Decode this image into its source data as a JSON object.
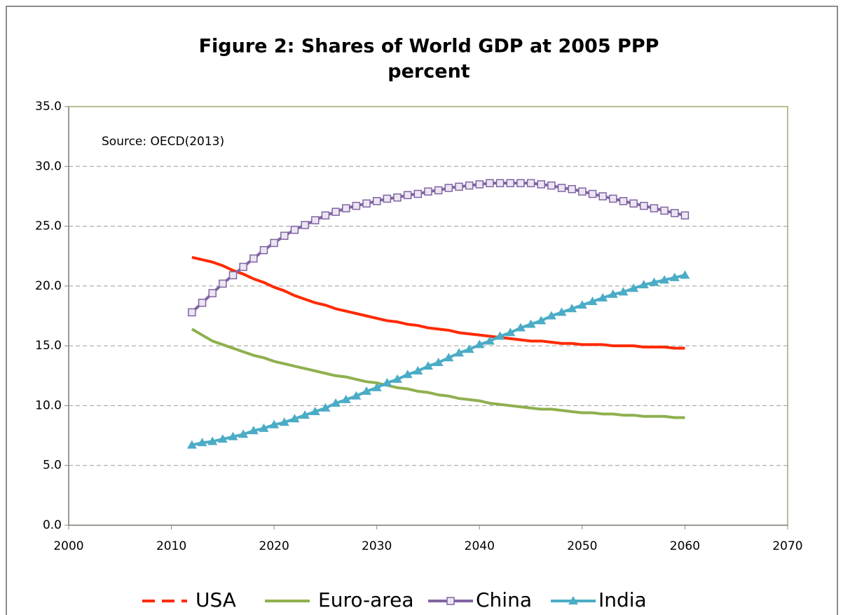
{
  "chart_data": {
    "type": "line",
    "title": "Figure 2: Shares of World GDP at 2005 PPP",
    "subtitle": "percent",
    "annotation": "Source: OECD(2013)",
    "x": [
      2012,
      2013,
      2014,
      2015,
      2016,
      2017,
      2018,
      2019,
      2020,
      2021,
      2022,
      2023,
      2024,
      2025,
      2026,
      2027,
      2028,
      2029,
      2030,
      2031,
      2032,
      2033,
      2034,
      2035,
      2036,
      2037,
      2038,
      2039,
      2040,
      2041,
      2042,
      2043,
      2044,
      2045,
      2046,
      2047,
      2048,
      2049,
      2050,
      2051,
      2052,
      2053,
      2054,
      2055,
      2056,
      2057,
      2058,
      2059,
      2060
    ],
    "series": [
      {
        "name": "USA",
        "color": "#ff2a00",
        "marker": "none",
        "legend_dash": true,
        "values": [
          22.4,
          22.2,
          22.0,
          21.7,
          21.3,
          21.0,
          20.6,
          20.3,
          19.9,
          19.6,
          19.2,
          18.9,
          18.6,
          18.4,
          18.1,
          17.9,
          17.7,
          17.5,
          17.3,
          17.1,
          17.0,
          16.8,
          16.7,
          16.5,
          16.4,
          16.3,
          16.1,
          16.0,
          15.9,
          15.8,
          15.7,
          15.6,
          15.5,
          15.4,
          15.4,
          15.3,
          15.2,
          15.2,
          15.1,
          15.1,
          15.1,
          15.0,
          15.0,
          15.0,
          14.9,
          14.9,
          14.9,
          14.8,
          14.8
        ]
      },
      {
        "name": "Euro-area",
        "color": "#8fb04f",
        "marker": "none",
        "values": [
          16.4,
          15.9,
          15.4,
          15.1,
          14.8,
          14.5,
          14.2,
          14.0,
          13.7,
          13.5,
          13.3,
          13.1,
          12.9,
          12.7,
          12.5,
          12.4,
          12.2,
          12.0,
          11.9,
          11.7,
          11.5,
          11.4,
          11.2,
          11.1,
          10.9,
          10.8,
          10.6,
          10.5,
          10.4,
          10.2,
          10.1,
          10.0,
          9.9,
          9.8,
          9.7,
          9.7,
          9.6,
          9.5,
          9.4,
          9.4,
          9.3,
          9.3,
          9.2,
          9.2,
          9.1,
          9.1,
          9.1,
          9.0,
          9.0
        ]
      },
      {
        "name": "China",
        "color": "#8064a2",
        "marker": "square",
        "values": [
          17.8,
          18.6,
          19.4,
          20.2,
          20.9,
          21.6,
          22.3,
          23.0,
          23.6,
          24.2,
          24.7,
          25.1,
          25.5,
          25.9,
          26.2,
          26.5,
          26.7,
          26.9,
          27.1,
          27.3,
          27.4,
          27.6,
          27.7,
          27.9,
          28.0,
          28.2,
          28.3,
          28.4,
          28.5,
          28.6,
          28.6,
          28.6,
          28.6,
          28.6,
          28.5,
          28.4,
          28.2,
          28.1,
          27.9,
          27.7,
          27.5,
          27.3,
          27.1,
          26.9,
          26.7,
          26.5,
          26.3,
          26.1,
          25.9
        ]
      },
      {
        "name": "India",
        "color": "#4bacc6",
        "marker": "triangle",
        "values": [
          6.7,
          6.9,
          7.0,
          7.2,
          7.4,
          7.6,
          7.9,
          8.1,
          8.4,
          8.6,
          8.9,
          9.2,
          9.5,
          9.8,
          10.2,
          10.5,
          10.8,
          11.2,
          11.5,
          11.9,
          12.2,
          12.6,
          12.9,
          13.3,
          13.6,
          14.0,
          14.4,
          14.7,
          15.1,
          15.4,
          15.8,
          16.1,
          16.5,
          16.8,
          17.1,
          17.5,
          17.8,
          18.1,
          18.4,
          18.7,
          19.0,
          19.3,
          19.5,
          19.8,
          20.1,
          20.3,
          20.5,
          20.7,
          20.9
        ]
      }
    ],
    "xlim": [
      2000,
      2070
    ],
    "xticks": [
      2000,
      2010,
      2020,
      2030,
      2040,
      2050,
      2060,
      2070
    ],
    "ylim": [
      0,
      35
    ],
    "yticks": [
      {
        "value": 0,
        "label": "0.0"
      },
      {
        "value": 5,
        "label": "5.0"
      },
      {
        "value": 10,
        "label": "10.0"
      },
      {
        "value": 15,
        "label": "15.0"
      },
      {
        "value": 20,
        "label": "20.0"
      },
      {
        "value": 25,
        "label": "25.0"
      },
      {
        "value": 30,
        "label": "30.0"
      },
      {
        "value": 35,
        "label": "35.0"
      }
    ],
    "grid": true,
    "legend": "bottom"
  }
}
